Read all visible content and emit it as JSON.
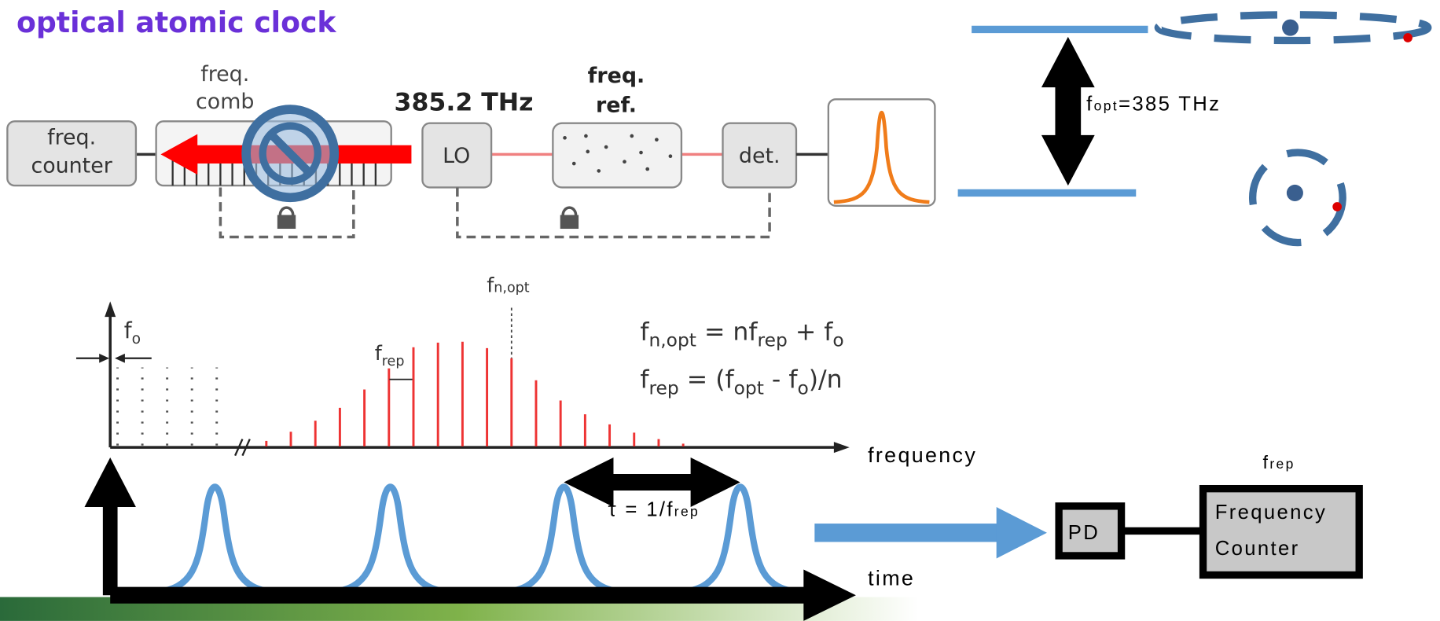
{
  "title": "optical atomic clock",
  "setup": {
    "counter": [
      "freq.",
      "counter"
    ],
    "comb": [
      "freq.",
      "comb"
    ],
    "lo_freq": "385.2 THz",
    "lo": "LO",
    "ref": [
      "freq.",
      "ref."
    ],
    "det": "det."
  },
  "levels": {
    "label": [
      "f",
      "opt",
      "=385 THz"
    ]
  },
  "spectrum": {
    "fn_opt": [
      "f",
      "n,opt"
    ],
    "f0": [
      "f",
      "o"
    ],
    "frep": [
      "f",
      "rep"
    ],
    "eq1": [
      "f",
      "n,opt",
      " = nf",
      "rep",
      " + f",
      "o"
    ],
    "eq2": [
      "f",
      "rep",
      " = (f",
      "opt",
      " - f",
      "o",
      ")/n"
    ],
    "axis": "frequency"
  },
  "time_domain": {
    "period": [
      "τ = 1/f",
      "rep"
    ],
    "axis": "time"
  },
  "detection": {
    "pd": "PD",
    "counter": [
      "Frequency",
      "Counter"
    ],
    "frep": [
      "f",
      "rep"
    ]
  }
}
